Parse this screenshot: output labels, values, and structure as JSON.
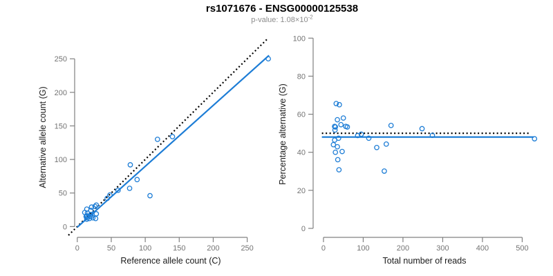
{
  "header": {
    "title": "rs1071676 - ENSG00000125538",
    "subtitle_prefix": "p-value: 1.08×10",
    "subtitle_exponent": "-2"
  },
  "colors": {
    "point_blue": "#1d7dd6",
    "line_blue": "#1d7dd6",
    "reference_black": "#000000",
    "axis_gray": "#808080",
    "tick_label_gray": "#737373",
    "axis_title_black": "#1a1a1a"
  },
  "chart_data": [
    {
      "type": "scatter",
      "xlabel": "Reference allele count (C)",
      "ylabel": "Alternative allele count (G)",
      "xticks": [
        0,
        50,
        100,
        150,
        200,
        250
      ],
      "yticks": [
        0,
        50,
        100,
        150,
        200,
        250
      ],
      "xlim": [
        -13,
        288
      ],
      "ylim": [
        -13,
        279
      ],
      "points": [
        [
          11,
          21
        ],
        [
          14,
          26
        ],
        [
          15,
          20
        ],
        [
          21,
          29
        ],
        [
          13,
          15
        ],
        [
          20,
          24
        ],
        [
          26,
          30
        ],
        [
          28,
          32
        ],
        [
          14,
          16
        ],
        [
          14,
          15
        ],
        [
          78,
          92
        ],
        [
          118,
          130
        ],
        [
          140,
          134
        ],
        [
          281,
          250
        ],
        [
          15,
          13
        ],
        [
          20,
          18
        ],
        [
          44,
          42
        ],
        [
          48,
          47
        ],
        [
          60,
          54
        ],
        [
          77,
          57
        ],
        [
          88,
          70
        ],
        [
          14,
          11
        ],
        [
          20,
          15
        ],
        [
          18,
          12
        ],
        [
          28,
          19
        ],
        [
          23,
          13
        ],
        [
          27,
          12
        ],
        [
          107,
          46
        ]
      ],
      "lines": [
        {
          "name": "identity-line",
          "kind": "abline",
          "slope": 1,
          "intercept": 0,
          "style": "dotted",
          "color": "black"
        },
        {
          "name": "fit-line",
          "kind": "segment",
          "x1": 0,
          "y1": -1,
          "x2": 282,
          "y2": 255,
          "style": "solid",
          "color": "blue"
        }
      ]
    },
    {
      "type": "scatter",
      "xlabel": "Total number of reads",
      "ylabel": "Percentage alternative (G)",
      "xticks": [
        0,
        100,
        200,
        300,
        400,
        500
      ],
      "yticks": [
        0,
        20,
        40,
        60,
        80,
        100
      ],
      "xlim": [
        -26,
        534
      ],
      "ylim": [
        -4,
        103
      ],
      "points": [
        [
          32,
          65.6
        ],
        [
          40,
          65.0
        ],
        [
          35,
          57.1
        ],
        [
          50,
          58.0
        ],
        [
          28,
          53.6
        ],
        [
          44,
          54.5
        ],
        [
          56,
          53.6
        ],
        [
          60,
          53.3
        ],
        [
          30,
          53.3
        ],
        [
          29,
          51.7
        ],
        [
          170,
          54.1
        ],
        [
          248,
          52.4
        ],
        [
          274,
          48.9
        ],
        [
          531,
          47.1
        ],
        [
          28,
          46.4
        ],
        [
          38,
          47.4
        ],
        [
          86,
          48.8
        ],
        [
          95,
          49.5
        ],
        [
          114,
          47.4
        ],
        [
          134,
          42.5
        ],
        [
          158,
          44.3
        ],
        [
          25,
          44.0
        ],
        [
          35,
          42.9
        ],
        [
          30,
          40.0
        ],
        [
          47,
          40.4
        ],
        [
          36,
          36.1
        ],
        [
          39,
          30.8
        ],
        [
          153,
          30.1
        ]
      ],
      "lines": [
        {
          "name": "expected-line",
          "kind": "hline",
          "y": 50,
          "x1": -4,
          "x2": 522,
          "style": "dotted",
          "color": "black"
        },
        {
          "name": "fit-line",
          "kind": "hline",
          "y": 48,
          "x1": -4,
          "x2": 529,
          "style": "solid",
          "color": "blue"
        }
      ]
    }
  ]
}
